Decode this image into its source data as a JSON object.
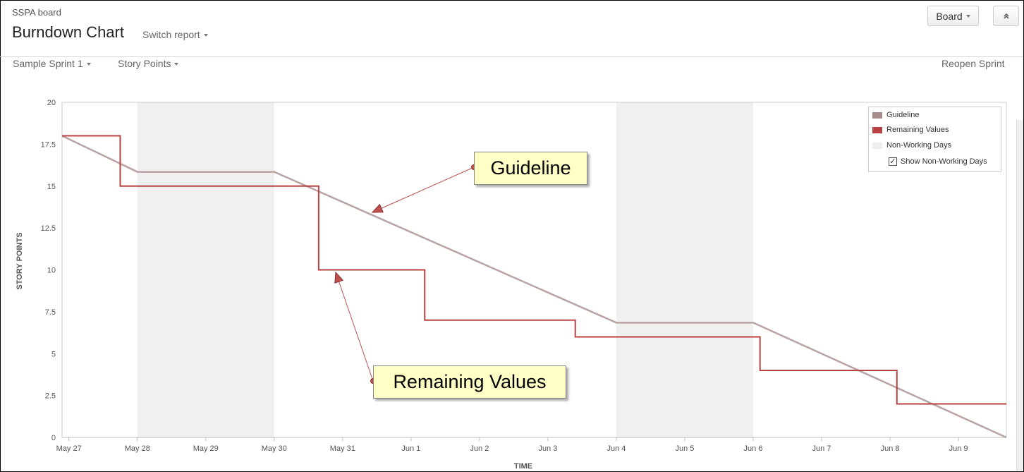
{
  "header": {
    "board_name": "SSPA board",
    "title": "Burndown Chart",
    "switch_report": "Switch report",
    "board_button": "Board",
    "collapse_icon": "double-chevron-up-icon"
  },
  "toolbar": {
    "sprint": "Sample Sprint 1",
    "metric": "Story Points",
    "reopen": "Reopen Sprint"
  },
  "callouts": {
    "guideline": "Guideline",
    "remaining": "Remaining Values"
  },
  "legend": {
    "guideline": "Guideline",
    "remaining": "Remaining Values",
    "non_working": "Non-Working Days",
    "show_non_working": "Show  Non-Working Days",
    "show_non_working_checked": true
  },
  "chart_data": {
    "type": "line",
    "xlabel": "TIME",
    "ylabel": "STORY POINTS",
    "ylim": [
      0,
      20
    ],
    "yticks": [
      "0",
      "2.5",
      "5",
      "7.5",
      "10",
      "12.5",
      "15",
      "17.5",
      "20"
    ],
    "xlim": [
      -0.1,
      13.7
    ],
    "xticks": [
      {
        "day": 0,
        "label": "May 27"
      },
      {
        "day": 1,
        "label": "May 28"
      },
      {
        "day": 2,
        "label": "May 29"
      },
      {
        "day": 3,
        "label": "May 30"
      },
      {
        "day": 4,
        "label": "May 31"
      },
      {
        "day": 5,
        "label": "Jun 1"
      },
      {
        "day": 6,
        "label": "Jun 2"
      },
      {
        "day": 7,
        "label": "Jun 3"
      },
      {
        "day": 8,
        "label": "Jun 4"
      },
      {
        "day": 9,
        "label": "Jun 5"
      },
      {
        "day": 10,
        "label": "Jun 6"
      },
      {
        "day": 11,
        "label": "Jun 7"
      },
      {
        "day": 12,
        "label": "Jun 8"
      },
      {
        "day": 13,
        "label": "Jun 9"
      }
    ],
    "non_working_days": [
      [
        1,
        3
      ],
      [
        8,
        10
      ]
    ],
    "series": [
      {
        "name": "Guideline",
        "color": "#b9a3a3",
        "points": [
          [
            -0.1,
            18
          ],
          [
            1,
            15.85
          ],
          [
            3,
            15.85
          ],
          [
            8,
            6.85
          ],
          [
            10,
            6.85
          ],
          [
            13.7,
            0
          ]
        ]
      },
      {
        "name": "Remaining Values",
        "color": "#b94141",
        "step": true,
        "points": [
          [
            -0.1,
            18
          ],
          [
            0.75,
            15
          ],
          [
            3.65,
            10
          ],
          [
            5.2,
            7
          ],
          [
            7.4,
            6
          ],
          [
            10.1,
            4
          ],
          [
            12.1,
            2
          ],
          [
            13.7,
            2
          ]
        ]
      }
    ],
    "legend": "top-right",
    "non_working_color": "#f0f0f0"
  }
}
